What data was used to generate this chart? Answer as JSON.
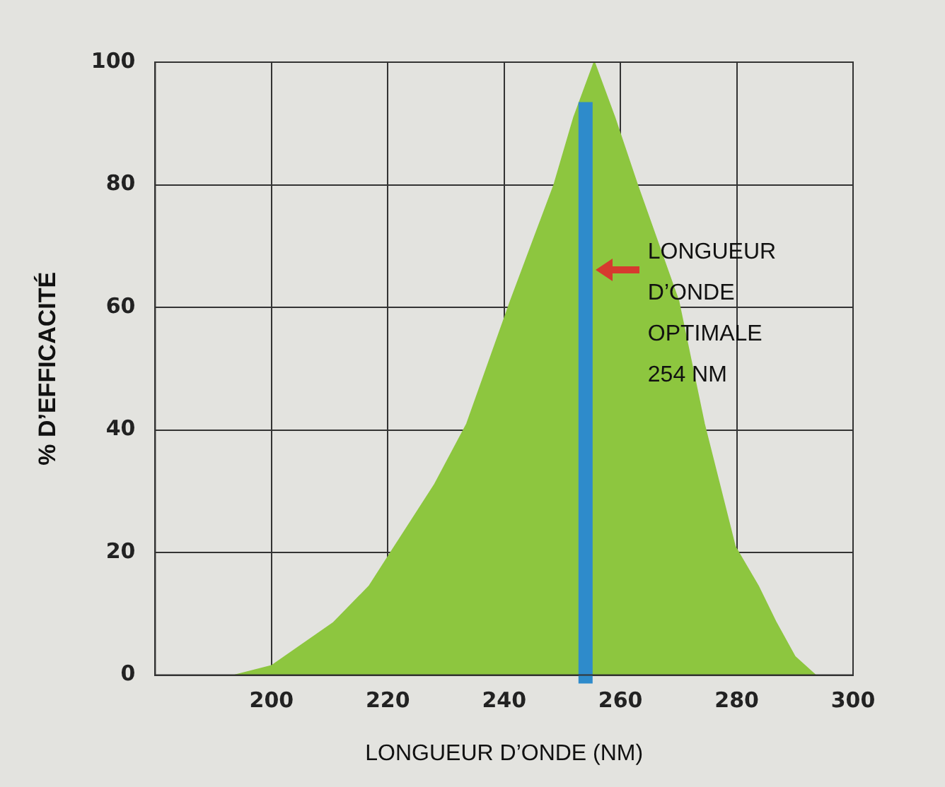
{
  "chart_data": {
    "type": "area",
    "xlabel": "LONGUEUR D’ONDE (NM)",
    "ylabel": "% D’EFFICACITÉ",
    "x": [
      193.7,
      200,
      210.6,
      216.8,
      221.2,
      228,
      233.6,
      241.1,
      248.6,
      252,
      255.5,
      259,
      262.9,
      270,
      274.4,
      279.7,
      283.7,
      286.8,
      290,
      293.5
    ],
    "values": [
      0,
      1.5,
      8.5,
      14.5,
      21,
      31,
      41,
      61,
      80,
      91,
      100,
      91,
      80,
      61,
      41,
      21,
      14.5,
      8.5,
      3,
      0
    ],
    "color": "#8dc63f",
    "xlim": [
      180,
      300
    ],
    "xticks": [
      200,
      220,
      240,
      260,
      280,
      300
    ],
    "ylim": [
      0,
      100
    ],
    "yticks": [
      0,
      20,
      40,
      60,
      80,
      100
    ],
    "grid": true,
    "marker": "none",
    "ref_lines": [
      {
        "axis": "x",
        "value": 254,
        "label": "LONGUEUR D’ONDE OPTIMALE 254 NM",
        "color": "#2e8bcb"
      }
    ]
  }
}
